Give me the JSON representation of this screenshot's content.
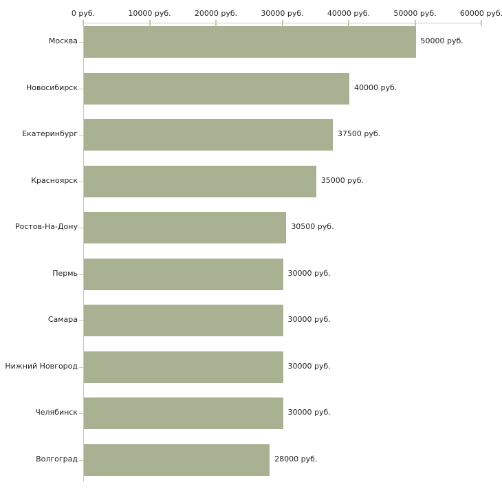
{
  "chart_data": {
    "type": "bar",
    "orientation": "horizontal",
    "title": "",
    "xlabel": "",
    "ylabel": "",
    "xlim": [
      0,
      60000
    ],
    "grid": false,
    "legend": false,
    "axis_position": "top",
    "unit_suffix": " руб.",
    "x_tick_values": [
      0,
      10000,
      20000,
      30000,
      40000,
      50000,
      60000
    ],
    "x_tick_labels": [
      "0 руб.",
      "10000 руб.",
      "20000 руб.",
      "30000 руб.",
      "40000 руб.",
      "50000 руб.",
      "60000 руб."
    ],
    "categories": [
      "Москва",
      "Новосибирск",
      "Екатеринбург",
      "Красноярск",
      "Ростов-На-Дону",
      "Пермь",
      "Самара",
      "Нижний Новгород",
      "Челябинск",
      "Волгоград"
    ],
    "values": [
      50000,
      40000,
      37500,
      35000,
      30500,
      30000,
      30000,
      30000,
      30000,
      28000
    ],
    "value_labels": [
      "50000 руб.",
      "40000 руб.",
      "37500 руб.",
      "35000 руб.",
      "30500 руб.",
      "30000 руб.",
      "30000 руб.",
      "30000 руб.",
      "30000 руб.",
      "28000 руб."
    ],
    "colors": {
      "bar": "#a9b193",
      "axis_line": "#c6c6c6",
      "tick": "#c9c9a2",
      "text": "#222222",
      "background": "#ffffff"
    }
  }
}
